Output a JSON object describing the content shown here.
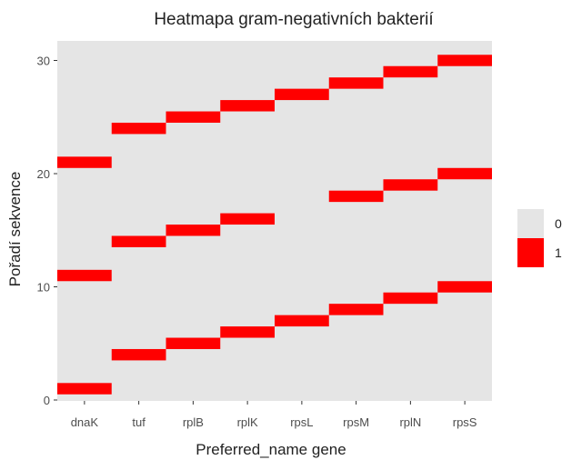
{
  "chart_data": {
    "type": "heatmap",
    "title": "Heatmapa gram-negativních bakterií",
    "xlabel": "Preferred_name gene",
    "ylabel": "Pořadí sekvence",
    "x_categories": [
      "dnaK",
      "tuf",
      "rplB",
      "rplK",
      "rpsL",
      "rpsM",
      "rplN",
      "rpsS"
    ],
    "ylim": [
      0,
      31
    ],
    "yticks": [
      0,
      10,
      20,
      30
    ],
    "grid": true,
    "legend": {
      "position": "right",
      "entries": [
        {
          "label": "0",
          "color": "#e5e5e5"
        },
        {
          "label": "1",
          "color": "#ff0000"
        }
      ]
    },
    "background_value": 0,
    "cells_value_1": [
      {
        "x": "dnaK",
        "y": 1
      },
      {
        "x": "dnaK",
        "y": 11
      },
      {
        "x": "dnaK",
        "y": 21
      },
      {
        "x": "tuf",
        "y": 4
      },
      {
        "x": "tuf",
        "y": 14
      },
      {
        "x": "tuf",
        "y": 24
      },
      {
        "x": "rplB",
        "y": 5
      },
      {
        "x": "rplB",
        "y": 15
      },
      {
        "x": "rplB",
        "y": 25
      },
      {
        "x": "rplK",
        "y": 6
      },
      {
        "x": "rplK",
        "y": 16
      },
      {
        "x": "rplK",
        "y": 26
      },
      {
        "x": "rpsL",
        "y": 7
      },
      {
        "x": "rpsL",
        "y": 27
      },
      {
        "x": "rpsM",
        "y": 8
      },
      {
        "x": "rpsM",
        "y": 18
      },
      {
        "x": "rpsM",
        "y": 28
      },
      {
        "x": "rplN",
        "y": 9
      },
      {
        "x": "rplN",
        "y": 19
      },
      {
        "x": "rplN",
        "y": 29
      },
      {
        "x": "rpsS",
        "y": 10
      },
      {
        "x": "rpsS",
        "y": 20
      },
      {
        "x": "rpsS",
        "y": 30
      }
    ]
  }
}
